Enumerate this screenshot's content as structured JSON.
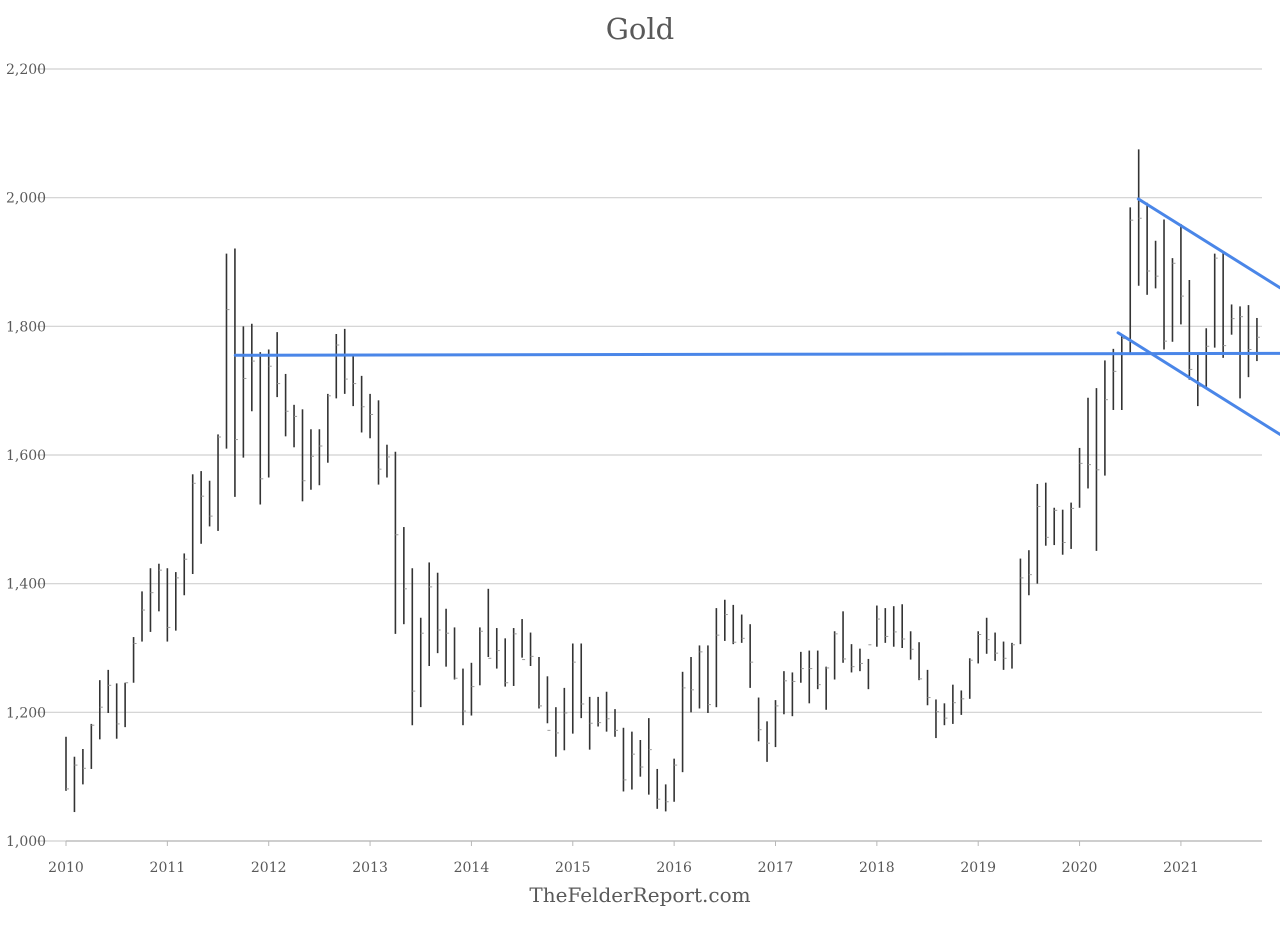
{
  "chart_data": {
    "type": "bar",
    "subtype": "ohlc",
    "title": "Gold",
    "xlabel": "",
    "ylabel": "",
    "footer": "TheFelderReport.com",
    "ylim": [
      1000,
      2200
    ],
    "yticks": [
      1000,
      1200,
      1400,
      1600,
      1800,
      2000,
      2200
    ],
    "ytick_labels": [
      "1,000",
      "1,200",
      "1,400",
      "1,600",
      "1,800",
      "2,000",
      "2,200"
    ],
    "xlim": [
      2010.0,
      2021.8
    ],
    "xticks": [
      2010,
      2011,
      2012,
      2013,
      2014,
      2015,
      2016,
      2017,
      2018,
      2019,
      2020,
      2021
    ],
    "xtick_labels": [
      "2010",
      "2011",
      "2012",
      "2013",
      "2014",
      "2015",
      "2016",
      "2017",
      "2018",
      "2019",
      "2020",
      "2021"
    ],
    "grid": true,
    "bar_color": "#333333",
    "line_color": "#4a86e8",
    "fields": [
      "high",
      "low",
      "close"
    ],
    "series": [
      {
        "name": "",
        "start": "2010-01",
        "frequency": "monthly",
        "bars": [
          [
            1162,
            1078,
            1081
          ],
          [
            1131,
            1045,
            1118
          ],
          [
            1143,
            1088,
            1113
          ],
          [
            1182,
            1112,
            1180
          ],
          [
            1250,
            1158,
            1208
          ],
          [
            1266,
            1199,
            1242
          ],
          [
            1245,
            1159,
            1182
          ],
          [
            1246,
            1177,
            1246
          ],
          [
            1317,
            1246,
            1307
          ],
          [
            1388,
            1310,
            1359
          ],
          [
            1424,
            1325,
            1386
          ],
          [
            1431,
            1357,
            1421
          ],
          [
            1424,
            1310,
            1332
          ],
          [
            1418,
            1327,
            1409
          ],
          [
            1447,
            1382,
            1438
          ],
          [
            1570,
            1415,
            1556
          ],
          [
            1575,
            1462,
            1536
          ],
          [
            1560,
            1489,
            1505
          ],
          [
            1632,
            1482,
            1628
          ],
          [
            1913,
            1610,
            1826
          ],
          [
            1921,
            1535,
            1624
          ],
          [
            1800,
            1596,
            1719
          ],
          [
            1804,
            1668,
            1746
          ],
          [
            1760,
            1523,
            1563
          ],
          [
            1764,
            1565,
            1738
          ],
          [
            1791,
            1690,
            1711
          ],
          [
            1726,
            1629,
            1668
          ],
          [
            1678,
            1612,
            1660
          ],
          [
            1671,
            1528,
            1560
          ],
          [
            1640,
            1546,
            1598
          ],
          [
            1640,
            1553,
            1614
          ],
          [
            1695,
            1588,
            1692
          ],
          [
            1788,
            1688,
            1771
          ],
          [
            1796,
            1695,
            1718
          ],
          [
            1754,
            1676,
            1711
          ],
          [
            1723,
            1635,
            1675
          ],
          [
            1695,
            1626,
            1663
          ],
          [
            1685,
            1554,
            1578
          ],
          [
            1616,
            1565,
            1597
          ],
          [
            1605,
            1322,
            1476
          ],
          [
            1488,
            1337,
            1392
          ],
          [
            1424,
            1180,
            1233
          ],
          [
            1347,
            1208,
            1323
          ],
          [
            1433,
            1272,
            1395
          ],
          [
            1417,
            1292,
            1328
          ],
          [
            1361,
            1271,
            1323
          ],
          [
            1332,
            1251,
            1253
          ],
          [
            1268,
            1180,
            1202
          ],
          [
            1277,
            1195,
            1240
          ],
          [
            1332,
            1242,
            1326
          ],
          [
            1392,
            1286,
            1284
          ],
          [
            1331,
            1268,
            1296
          ],
          [
            1315,
            1240,
            1246
          ],
          [
            1331,
            1241,
            1322
          ],
          [
            1345,
            1285,
            1282
          ],
          [
            1324,
            1272,
            1287
          ],
          [
            1286,
            1206,
            1210
          ],
          [
            1256,
            1183,
            1172
          ],
          [
            1208,
            1131,
            1168
          ],
          [
            1238,
            1141,
            1199
          ],
          [
            1307,
            1167,
            1278
          ],
          [
            1307,
            1191,
            1213
          ],
          [
            1224,
            1142,
            1183
          ],
          [
            1224,
            1178,
            1184
          ],
          [
            1232,
            1170,
            1190
          ],
          [
            1205,
            1162,
            1172
          ],
          [
            1176,
            1077,
            1095
          ],
          [
            1170,
            1080,
            1135
          ],
          [
            1157,
            1100,
            1115
          ],
          [
            1191,
            1072,
            1142
          ],
          [
            1112,
            1050,
            1065
          ],
          [
            1088,
            1046,
            1061
          ],
          [
            1128,
            1061,
            1118
          ],
          [
            1263,
            1107,
            1238
          ],
          [
            1286,
            1200,
            1235
          ],
          [
            1304,
            1206,
            1294
          ],
          [
            1304,
            1199,
            1212
          ],
          [
            1362,
            1208,
            1320
          ],
          [
            1375,
            1311,
            1352
          ],
          [
            1367,
            1306,
            1309
          ],
          [
            1352,
            1308,
            1315
          ],
          [
            1337,
            1238,
            1278
          ],
          [
            1223,
            1155,
            1173
          ],
          [
            1186,
            1123,
            1152
          ],
          [
            1219,
            1146,
            1210
          ],
          [
            1264,
            1197,
            1249
          ],
          [
            1262,
            1194,
            1248
          ],
          [
            1294,
            1246,
            1268
          ],
          [
            1296,
            1214,
            1268
          ],
          [
            1296,
            1236,
            1243
          ],
          [
            1271,
            1204,
            1269
          ],
          [
            1326,
            1251,
            1322
          ],
          [
            1357,
            1277,
            1283
          ],
          [
            1306,
            1262,
            1271
          ],
          [
            1299,
            1264,
            1276
          ],
          [
            1283,
            1236,
            1305
          ],
          [
            1366,
            1302,
            1345
          ],
          [
            1362,
            1308,
            1318
          ],
          [
            1365,
            1302,
            1325
          ],
          [
            1368,
            1300,
            1314
          ],
          [
            1326,
            1282,
            1298
          ],
          [
            1309,
            1250,
            1252
          ],
          [
            1266,
            1211,
            1223
          ],
          [
            1220,
            1160,
            1201
          ],
          [
            1214,
            1180,
            1191
          ],
          [
            1243,
            1182,
            1215
          ],
          [
            1234,
            1196,
            1221
          ],
          [
            1284,
            1221,
            1281
          ],
          [
            1326,
            1276,
            1321
          ],
          [
            1347,
            1291,
            1313
          ],
          [
            1324,
            1280,
            1292
          ],
          [
            1310,
            1266,
            1284
          ],
          [
            1308,
            1268,
            1305
          ],
          [
            1439,
            1306,
            1409
          ],
          [
            1452,
            1382,
            1414
          ],
          [
            1555,
            1400,
            1520
          ],
          [
            1557,
            1459,
            1472
          ],
          [
            1518,
            1460,
            1514
          ],
          [
            1515,
            1445,
            1464
          ],
          [
            1526,
            1454,
            1517
          ],
          [
            1611,
            1518,
            1587
          ],
          [
            1689,
            1548,
            1585
          ],
          [
            1704,
            1451,
            1577
          ],
          [
            1747,
            1568,
            1686
          ],
          [
            1765,
            1670,
            1730
          ],
          [
            1787,
            1670,
            1781
          ],
          [
            1985,
            1757,
            1965
          ],
          [
            2075,
            1863,
            1968
          ],
          [
            1992,
            1849,
            1886
          ],
          [
            1933,
            1859,
            1878
          ],
          [
            1966,
            1764,
            1777
          ],
          [
            1906,
            1776,
            1898
          ],
          [
            1959,
            1803,
            1847
          ],
          [
            1872,
            1717,
            1733
          ],
          [
            1756,
            1676,
            1707
          ],
          [
            1797,
            1706,
            1769
          ],
          [
            1913,
            1767,
            1906
          ],
          [
            1916,
            1751,
            1770
          ],
          [
            1834,
            1787,
            1812
          ],
          [
            1831,
            1688,
            1815
          ],
          [
            1833,
            1721,
            1764
          ],
          [
            1813,
            1746,
            1783
          ]
        ]
      }
    ],
    "trendlines": [
      {
        "name": "",
        "from": [
          2011.67,
          1755
        ],
        "to": [
          2021.8,
          1758
        ]
      },
      {
        "name": "",
        "from": [
          2020.58,
          1998
        ],
        "to": [
          2021.8,
          1860
        ]
      },
      {
        "name": "",
        "from": [
          2020.38,
          1790
        ],
        "to": [
          2021.8,
          1632
        ]
      }
    ]
  }
}
